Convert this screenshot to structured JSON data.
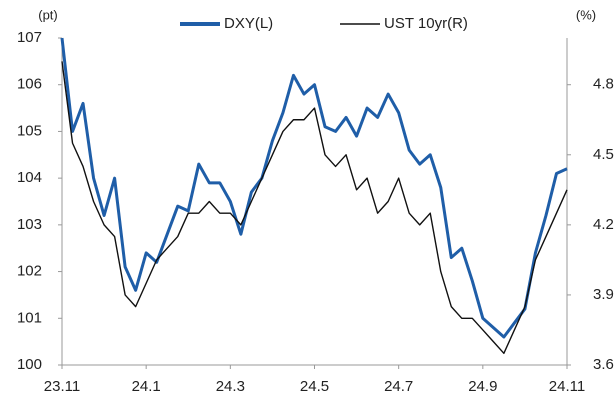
{
  "chart_data": {
    "type": "line",
    "y_unit_label": "(pt)",
    "y2_unit_label": "(%)",
    "x": [
      0,
      0.25,
      0.5,
      0.75,
      1,
      1.25,
      1.5,
      1.75,
      2,
      2.25,
      2.5,
      2.75,
      3,
      3.25,
      3.5,
      3.75,
      4,
      4.25,
      4.5,
      4.75,
      5,
      5.25,
      5.5,
      5.75,
      6,
      6.25,
      6.5,
      6.75,
      7,
      7.25,
      7.5,
      7.75,
      8,
      8.25,
      8.5,
      8.75,
      9,
      9.25,
      9.5,
      9.75,
      10,
      10.25,
      10.5,
      10.75,
      11,
      11.25,
      11.5,
      11.75,
      12
    ],
    "xlim": [
      0,
      12
    ],
    "xticks": [
      {
        "value": 0,
        "label": "23.11"
      },
      {
        "value": 2,
        "label": "24.1"
      },
      {
        "value": 4,
        "label": "24.3"
      },
      {
        "value": 6,
        "label": "24.5"
      },
      {
        "value": 8,
        "label": "24.7"
      },
      {
        "value": 10,
        "label": "24.9"
      },
      {
        "value": 12,
        "label": "24.11"
      }
    ],
    "ylim": [
      100,
      107
    ],
    "yticks": [
      100,
      101,
      102,
      103,
      104,
      105,
      106,
      107
    ],
    "y2lim": [
      3.6,
      5.0
    ],
    "y2ticks": [
      3.6,
      3.9,
      4.2,
      4.5,
      4.8
    ],
    "series": [
      {
        "name": "DXY(L)",
        "color": "#1f5ea8",
        "axis": "y",
        "values": [
          107.0,
          105.0,
          105.6,
          104.0,
          103.2,
          104.0,
          102.1,
          101.6,
          102.4,
          102.2,
          102.8,
          103.4,
          103.3,
          104.3,
          103.9,
          103.9,
          103.5,
          102.8,
          103.7,
          104.0,
          104.8,
          105.4,
          106.2,
          105.8,
          106.0,
          105.1,
          105.0,
          105.3,
          104.9,
          105.5,
          105.3,
          105.8,
          105.4,
          104.6,
          104.3,
          104.5,
          103.8,
          102.3,
          102.5,
          101.8,
          101.0,
          100.8,
          100.6,
          100.9,
          101.2,
          102.4,
          103.2,
          104.1,
          104.2
        ]
      },
      {
        "name": "UST 10yr(R)",
        "color": "#111111",
        "axis": "y2",
        "values": [
          4.9,
          4.55,
          4.45,
          4.3,
          4.2,
          4.15,
          3.9,
          3.85,
          3.95,
          4.05,
          4.1,
          4.15,
          4.25,
          4.25,
          4.3,
          4.25,
          4.25,
          4.2,
          4.3,
          4.4,
          4.5,
          4.6,
          4.65,
          4.65,
          4.7,
          4.5,
          4.45,
          4.5,
          4.35,
          4.4,
          4.25,
          4.3,
          4.4,
          4.25,
          4.2,
          4.25,
          4.0,
          3.85,
          3.8,
          3.8,
          3.75,
          3.7,
          3.65,
          3.75,
          3.85,
          4.05,
          4.15,
          4.25,
          4.35
        ]
      }
    ]
  }
}
